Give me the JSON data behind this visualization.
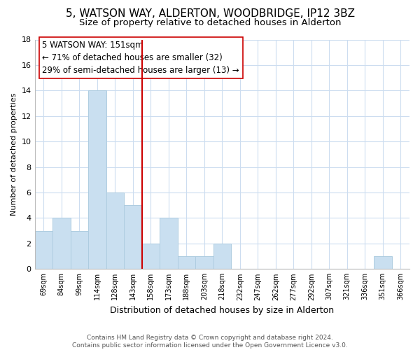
{
  "title": "5, WATSON WAY, ALDERTON, WOODBRIDGE, IP12 3BZ",
  "subtitle": "Size of property relative to detached houses in Alderton",
  "xlabel": "Distribution of detached houses by size in Alderton",
  "ylabel": "Number of detached properties",
  "bar_labels": [
    "69sqm",
    "84sqm",
    "99sqm",
    "114sqm",
    "128sqm",
    "143sqm",
    "158sqm",
    "173sqm",
    "188sqm",
    "203sqm",
    "218sqm",
    "232sqm",
    "247sqm",
    "262sqm",
    "277sqm",
    "292sqm",
    "307sqm",
    "321sqm",
    "336sqm",
    "351sqm",
    "366sqm"
  ],
  "bar_values": [
    3,
    4,
    3,
    14,
    6,
    5,
    2,
    4,
    1,
    1,
    2,
    0,
    0,
    0,
    0,
    0,
    0,
    0,
    0,
    1,
    0
  ],
  "bar_color": "#c9dff0",
  "bar_edge_color": "#aecce0",
  "vline_pos": 5.5,
  "vline_color": "#cc0000",
  "annotation_box_text": "5 WATSON WAY: 151sqm\n← 71% of detached houses are smaller (32)\n29% of semi-detached houses are larger (13) →",
  "ylim": [
    0,
    18
  ],
  "yticks": [
    0,
    2,
    4,
    6,
    8,
    10,
    12,
    14,
    16,
    18
  ],
  "footer_text": "Contains HM Land Registry data © Crown copyright and database right 2024.\nContains public sector information licensed under the Open Government Licence v3.0.",
  "title_fontsize": 11,
  "subtitle_fontsize": 9.5,
  "annotation_fontsize": 8.5,
  "footer_fontsize": 6.5,
  "bg_color": "#ffffff",
  "grid_color": "#ccddf0"
}
